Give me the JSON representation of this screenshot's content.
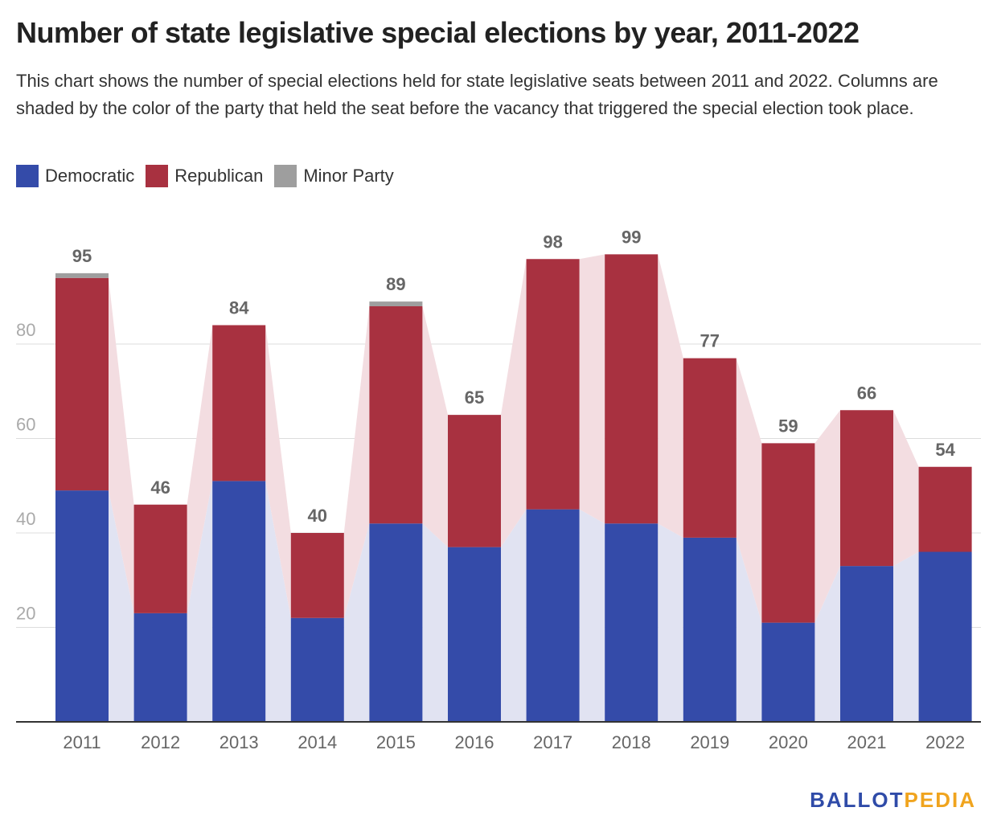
{
  "title": "Number of state legislative special elections by year, 2011-2022",
  "subtitle": "This chart shows the number of special elections held for state legislative seats between 2011 and 2022. Columns are shaded by the color of the party that held the seat before the vacancy that triggered the special election took place.",
  "logo": {
    "part1": "BALLOT",
    "part2": "PEDIA"
  },
  "colors": {
    "democratic": "#344ba9",
    "republican": "#a83140",
    "minor": "#9e9e9e",
    "dem_band": "#e1e3f2",
    "rep_band": "#f3dde1",
    "grid": "#dddddd",
    "axis_text": "#666666",
    "total_label": "#666666"
  },
  "chart_data": {
    "type": "bar",
    "stacked": true,
    "title": "Number of state legislative special elections by year, 2011-2022",
    "xlabel": "",
    "ylabel": "",
    "categories": [
      "2011",
      "2012",
      "2013",
      "2014",
      "2015",
      "2016",
      "2017",
      "2018",
      "2019",
      "2020",
      "2021",
      "2022"
    ],
    "series": [
      {
        "name": "Democratic",
        "values": [
          49,
          23,
          51,
          22,
          42,
          37,
          45,
          42,
          39,
          21,
          33,
          36
        ]
      },
      {
        "name": "Republican",
        "values": [
          45,
          23,
          33,
          18,
          46,
          28,
          53,
          57,
          38,
          38,
          33,
          18
        ]
      },
      {
        "name": "Minor Party",
        "values": [
          1,
          0,
          0,
          0,
          1,
          0,
          0,
          0,
          0,
          0,
          0,
          0
        ]
      }
    ],
    "totals": [
      95,
      46,
      84,
      40,
      89,
      65,
      98,
      99,
      77,
      59,
      66,
      54
    ],
    "yticks": [
      20,
      40,
      60,
      80
    ],
    "ylim": [
      0,
      100
    ],
    "grid": true,
    "legend_position": "top-left"
  }
}
